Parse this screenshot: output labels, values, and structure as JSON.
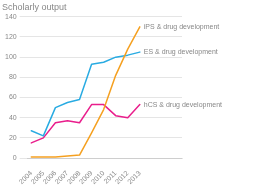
{
  "chart_data": {
    "type": "line",
    "title": "Scholarly output",
    "x": [
      2004,
      2005,
      2006,
      2007,
      2008,
      2009,
      2010,
      2011,
      2012,
      2013
    ],
    "series": [
      {
        "name": "iPS & drug development",
        "color": "#f5a020",
        "values": [
          1,
          1,
          1,
          2,
          3,
          25,
          48,
          82,
          108,
          130
        ]
      },
      {
        "name": "ES & drug development",
        "color": "#29abe2",
        "values": [
          27,
          22,
          50,
          55,
          58,
          93,
          95,
          100,
          102,
          105
        ]
      },
      {
        "name": "hCS & drug development",
        "color": "#e91e8c",
        "values": [
          15,
          20,
          35,
          37,
          35,
          53,
          53,
          42,
          40,
          53
        ]
      }
    ],
    "xlim": [
      2003.7,
      2016.5
    ],
    "xticks": [
      2004,
      2005,
      2006,
      2007,
      2008,
      2009,
      2010,
      2011,
      2012,
      2013
    ],
    "ylim": [
      0,
      140
    ],
    "yticks": [
      0,
      20,
      40,
      60,
      80,
      100,
      120,
      140
    ],
    "grid": true
  }
}
